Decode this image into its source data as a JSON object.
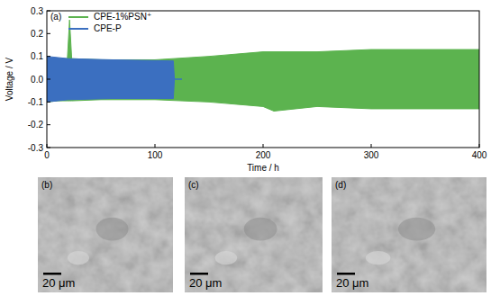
{
  "chart_data": {
    "type": "area",
    "title": "(a)",
    "x_label": "Time / h",
    "y_label": "Voltage / V",
    "xlim": [
      0,
      400
    ],
    "xticks": [
      0,
      100,
      200,
      300,
      400
    ],
    "ylim": [
      -0.3,
      0.3
    ],
    "yticks": [
      -0.3,
      -0.2,
      -0.1,
      {
        "value": 0,
        "label": "0.0"
      },
      0.1,
      0.2,
      0.3
    ],
    "legend": "upper-left",
    "grid": false,
    "series": [
      {
        "name": "CPE-1%PSN⁺",
        "color": "#5cb34f",
        "x": [
          0,
          10,
          19,
          21,
          23,
          50,
          100,
          150,
          200,
          210,
          250,
          300,
          350,
          400
        ],
        "values": [
          0.095,
          0.09,
          0.09,
          0.26,
          0.09,
          0.085,
          0.085,
          0.1,
          0.12,
          0.12,
          0.12,
          0.13,
          0.13,
          0.13
        ],
        "lower": [
          -0.1,
          -0.095,
          -0.095,
          -0.095,
          -0.095,
          -0.09,
          -0.09,
          -0.1,
          -0.12,
          -0.14,
          -0.12,
          -0.13,
          -0.13,
          -0.13
        ]
      },
      {
        "name": "CPE-P",
        "color": "#3b6fc0",
        "x": [
          0,
          20,
          60,
          117,
          118,
          125
        ],
        "values": [
          0.1,
          0.09,
          0.085,
          0.08,
          0,
          0
        ],
        "lower": [
          -0.1,
          -0.09,
          -0.085,
          -0.085,
          0,
          0
        ]
      }
    ]
  },
  "panels": [
    {
      "label": "(b)",
      "scale_bar": "20 μm"
    },
    {
      "label": "(c)",
      "scale_bar": "20 μm"
    },
    {
      "label": "(d)",
      "scale_bar": "20 μm"
    }
  ]
}
